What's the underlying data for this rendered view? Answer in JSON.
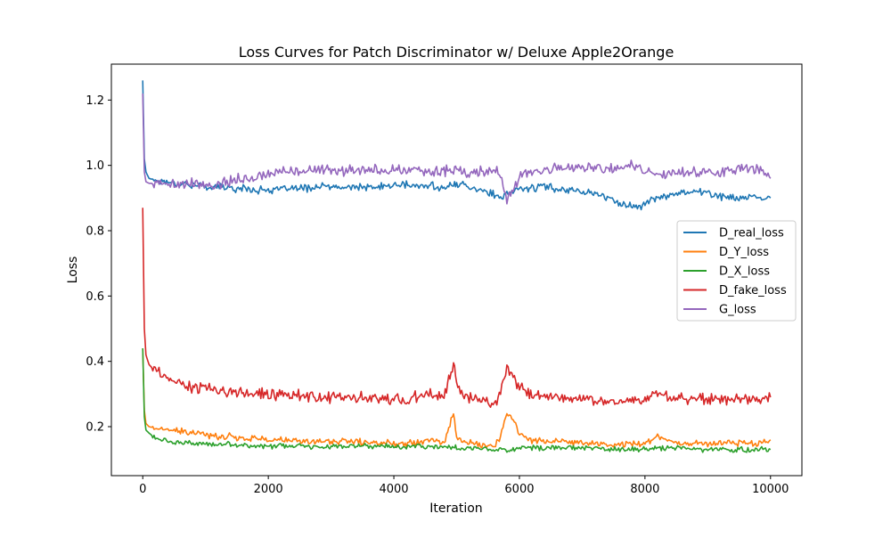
{
  "chart_data": {
    "type": "line",
    "title": "Loss Curves for Patch Discriminator w/ Deluxe Apple2Orange",
    "xlabel": "Iteration",
    "ylabel": "Loss",
    "xlim": [
      -500,
      10500
    ],
    "ylim": [
      0.05,
      1.31
    ],
    "xticks": [
      0,
      2000,
      4000,
      6000,
      8000,
      10000
    ],
    "xtick_labels": [
      "0",
      "2000",
      "4000",
      "6000",
      "8000",
      "10000"
    ],
    "yticks": [
      0.2,
      0.4,
      0.6,
      0.8,
      1.0,
      1.2
    ],
    "ytick_labels": [
      "0.2",
      "0.4",
      "0.6",
      "0.8",
      "1.0",
      "1.2"
    ],
    "grid": false,
    "legend": "center-right",
    "x": [
      0,
      25,
      50,
      100,
      200,
      400,
      600,
      800,
      1000,
      1200,
      1400,
      1600,
      1800,
      2000,
      2200,
      2400,
      2600,
      2800,
      3000,
      3200,
      3400,
      3600,
      3800,
      4000,
      4200,
      4400,
      4600,
      4800,
      4950,
      5000,
      5100,
      5200,
      5400,
      5600,
      5700,
      5800,
      5900,
      6000,
      6200,
      6400,
      6600,
      6800,
      7000,
      7200,
      7400,
      7600,
      7800,
      7900,
      8000,
      8200,
      8400,
      8600,
      8800,
      9000,
      9200,
      9400,
      9600,
      9800,
      10000
    ],
    "series": [
      {
        "name": "D_real_loss",
        "color": "#1f77b4",
        "values": [
          1.26,
          1.02,
          0.98,
          0.96,
          0.955,
          0.95,
          0.945,
          0.94,
          0.935,
          0.935,
          0.93,
          0.93,
          0.925,
          0.925,
          0.925,
          0.93,
          0.93,
          0.935,
          0.935,
          0.93,
          0.935,
          0.93,
          0.935,
          0.94,
          0.94,
          0.935,
          0.94,
          0.93,
          0.94,
          0.945,
          0.94,
          0.935,
          0.925,
          0.91,
          0.895,
          0.91,
          0.92,
          0.93,
          0.93,
          0.935,
          0.93,
          0.925,
          0.92,
          0.915,
          0.9,
          0.885,
          0.875,
          0.87,
          0.885,
          0.9,
          0.91,
          0.92,
          0.92,
          0.915,
          0.905,
          0.9,
          0.9,
          0.9,
          0.9
        ]
      },
      {
        "name": "D_Y_loss",
        "color": "#ff7f0e",
        "values": [
          0.44,
          0.25,
          0.21,
          0.2,
          0.195,
          0.19,
          0.185,
          0.18,
          0.175,
          0.17,
          0.17,
          0.165,
          0.165,
          0.16,
          0.16,
          0.155,
          0.155,
          0.155,
          0.155,
          0.155,
          0.155,
          0.15,
          0.15,
          0.15,
          0.15,
          0.155,
          0.16,
          0.15,
          0.24,
          0.17,
          0.155,
          0.15,
          0.145,
          0.14,
          0.17,
          0.24,
          0.22,
          0.18,
          0.16,
          0.155,
          0.155,
          0.15,
          0.15,
          0.15,
          0.145,
          0.145,
          0.15,
          0.15,
          0.15,
          0.17,
          0.155,
          0.15,
          0.15,
          0.15,
          0.15,
          0.15,
          0.15,
          0.15,
          0.16
        ]
      },
      {
        "name": "D_X_loss",
        "color": "#2ca02c",
        "values": [
          0.44,
          0.23,
          0.19,
          0.18,
          0.165,
          0.155,
          0.15,
          0.15,
          0.145,
          0.145,
          0.145,
          0.145,
          0.14,
          0.14,
          0.14,
          0.14,
          0.14,
          0.14,
          0.14,
          0.14,
          0.14,
          0.14,
          0.14,
          0.14,
          0.14,
          0.14,
          0.14,
          0.14,
          0.135,
          0.135,
          0.135,
          0.135,
          0.135,
          0.13,
          0.13,
          0.13,
          0.13,
          0.135,
          0.135,
          0.135,
          0.135,
          0.135,
          0.135,
          0.135,
          0.13,
          0.13,
          0.13,
          0.13,
          0.13,
          0.135,
          0.135,
          0.135,
          0.13,
          0.13,
          0.13,
          0.13,
          0.13,
          0.13,
          0.13
        ]
      },
      {
        "name": "D_fake_loss",
        "color": "#d62728",
        "values": [
          0.87,
          0.5,
          0.42,
          0.39,
          0.37,
          0.345,
          0.33,
          0.32,
          0.315,
          0.31,
          0.305,
          0.305,
          0.3,
          0.3,
          0.3,
          0.295,
          0.295,
          0.29,
          0.29,
          0.29,
          0.29,
          0.285,
          0.285,
          0.285,
          0.285,
          0.29,
          0.3,
          0.29,
          0.39,
          0.33,
          0.3,
          0.29,
          0.28,
          0.27,
          0.3,
          0.38,
          0.35,
          0.32,
          0.3,
          0.29,
          0.29,
          0.285,
          0.285,
          0.285,
          0.28,
          0.28,
          0.28,
          0.28,
          0.285,
          0.3,
          0.29,
          0.285,
          0.285,
          0.285,
          0.285,
          0.285,
          0.28,
          0.28,
          0.29
        ]
      },
      {
        "name": "G_loss",
        "color": "#9467bd",
        "values": [
          1.22,
          0.98,
          0.95,
          0.945,
          0.945,
          0.945,
          0.945,
          0.945,
          0.94,
          0.945,
          0.955,
          0.96,
          0.965,
          0.97,
          0.98,
          0.985,
          0.985,
          0.985,
          0.99,
          0.985,
          0.99,
          0.985,
          0.985,
          0.985,
          0.985,
          0.985,
          0.98,
          0.98,
          0.985,
          0.99,
          0.98,
          0.975,
          0.98,
          0.99,
          0.975,
          0.89,
          0.93,
          0.96,
          0.975,
          0.985,
          0.99,
          0.99,
          0.995,
          0.995,
          0.99,
          0.995,
          1.0,
          0.995,
          0.985,
          0.97,
          0.975,
          0.975,
          0.98,
          0.98,
          0.98,
          0.985,
          0.99,
          0.99,
          0.96
        ]
      }
    ]
  }
}
